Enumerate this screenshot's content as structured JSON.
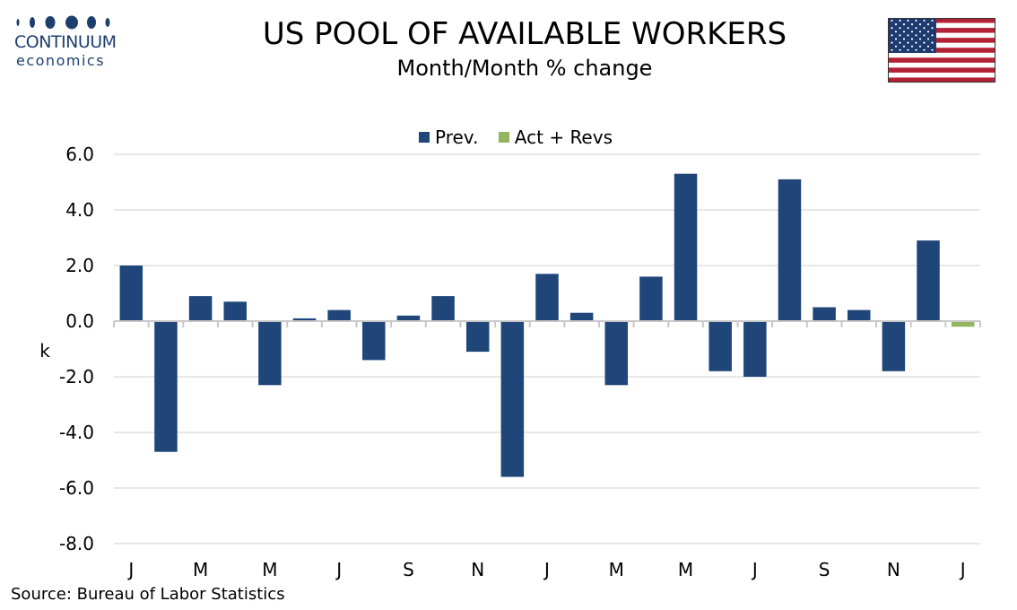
{
  "header": {
    "logo_name": "CONTINUUM",
    "logo_sub": "economics",
    "title": "US POOL OF AVAILABLE WORKERS",
    "subtitle": "Month/Month % change"
  },
  "footer": {
    "source": "Source: Bureau of Labor Statistics"
  },
  "colors": {
    "prev": "#1f4579",
    "act": "#92b55e",
    "grid": "#d0d0d0",
    "flag_red": "#b22234",
    "flag_blue": "#1e3a6e"
  },
  "icons": {
    "flag": "us-flag-icon",
    "logo": "continuum-logo-icon"
  },
  "chart_data": {
    "type": "bar",
    "ylabel": "k",
    "ylim": [
      -8,
      6
    ],
    "yticks": [
      "6.0",
      "4.0",
      "2.0",
      "0.0",
      "-2.0",
      "-4.0",
      "-6.0",
      "-8.0"
    ],
    "ytick_values": [
      6,
      4,
      2,
      0,
      -2,
      -4,
      -6,
      -8
    ],
    "grid": true,
    "legend_position": "top-center",
    "x_tick_labels": [
      "J",
      "M",
      "M",
      "J",
      "S",
      "N",
      "J",
      "M",
      "M",
      "J",
      "S",
      "N",
      "J"
    ],
    "series": [
      {
        "name": "Prev.",
        "values": [
          2.0,
          -4.7,
          0.9,
          0.7,
          -2.3,
          0.1,
          0.4,
          -1.4,
          0.2,
          0.9,
          -1.1,
          -5.6,
          1.7,
          0.3,
          -2.3,
          1.6,
          5.3,
          -1.8,
          -2.0,
          5.1,
          0.5,
          0.4,
          -1.8,
          2.9,
          null
        ]
      },
      {
        "name": "Act + Revs",
        "values": [
          null,
          null,
          null,
          null,
          null,
          null,
          null,
          null,
          null,
          null,
          null,
          null,
          null,
          null,
          null,
          null,
          null,
          null,
          null,
          null,
          null,
          null,
          null,
          null,
          -0.2
        ]
      }
    ]
  }
}
